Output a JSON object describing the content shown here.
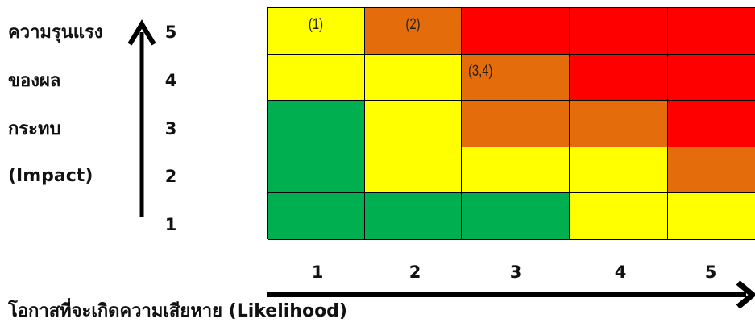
{
  "impact_label": [
    "ความรุนแรง",
    "ของผล",
    "กระทบ",
    "(Impact)"
  ],
  "likelihood_label": "โอกาสที่จะเกิดความเสียหาย (Likelihood)",
  "impact_ticks": [
    "5",
    "4",
    "3",
    "2",
    "1"
  ],
  "likelihood_ticks": [
    "1",
    "2",
    "3",
    "4",
    "5"
  ],
  "colors": {
    "green": "#00b050",
    "yellow": "#ffff00",
    "orange": "#e46c0a",
    "red": "#ff0000"
  },
  "matrix": {
    "rows_top_to_bottom_impact": [
      5,
      4,
      3,
      2,
      1
    ],
    "cols_left_to_right_likelihood": [
      1,
      2,
      3,
      4,
      5
    ],
    "cells": [
      [
        "yellow",
        "orange",
        "red",
        "red",
        "red"
      ],
      [
        "yellow",
        "yellow",
        "orange",
        "red",
        "red"
      ],
      [
        "green",
        "yellow",
        "orange",
        "orange",
        "red"
      ],
      [
        "green",
        "yellow",
        "yellow",
        "yellow",
        "orange"
      ],
      [
        "green",
        "green",
        "green",
        "yellow",
        "yellow"
      ]
    ],
    "labels": [
      [
        "(1)",
        "(2)",
        "",
        "",
        ""
      ],
      [
        "",
        "",
        "(3,4)",
        "",
        ""
      ],
      [
        "",
        "",
        "",
        "",
        ""
      ],
      [
        "",
        "",
        "",
        "",
        ""
      ],
      [
        "",
        "",
        "",
        "",
        ""
      ]
    ]
  }
}
